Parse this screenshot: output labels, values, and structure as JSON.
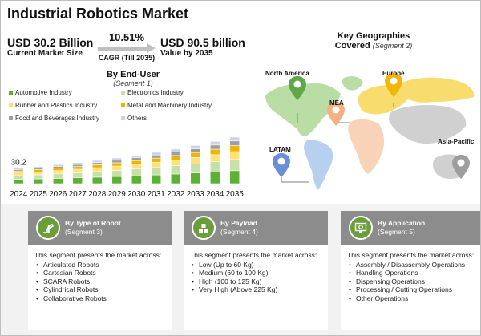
{
  "title": "Industrial Robotics Market",
  "market": {
    "current_value": "USD 30.2 Billion",
    "current_label": "Current Market Size",
    "cagr_value": "10.51%",
    "cagr_label": "CAGR (Till 2035)",
    "future_value": "USD 90.5 billion",
    "future_label": "Value by 2035"
  },
  "end_user": {
    "title": "By End-User",
    "subtitle": "(Segment 1)"
  },
  "geographies": {
    "title_line1": "Key Geographies",
    "title_line2": "Covered",
    "subtitle": "(Segment 2)",
    "regions": [
      "North America",
      "Europe",
      "MEA",
      "LATAM",
      "Asia-Pacific"
    ],
    "pin_colors": {
      "North America": "#5fa84a",
      "Europe": "#f2b705",
      "MEA": "#f4b183",
      "LATAM": "#6b8fd6",
      "Asia-Pacific": "#9e9e9e"
    }
  },
  "chart_data": {
    "type": "bar",
    "stacked": true,
    "categories": [
      "2024",
      "2025",
      "2026",
      "2027",
      "2028",
      "2029",
      "2030",
      "2031",
      "2032",
      "2033",
      "2034",
      "2035"
    ],
    "series": [
      {
        "name": "Automotive Industry",
        "color": "#5cb032",
        "values": [
          8.4,
          9.3,
          10.3,
          11.4,
          12.6,
          13.9,
          15.4,
          17.0,
          18.8,
          20.8,
          23.0,
          25.3
        ]
      },
      {
        "name": "Electronics Industry",
        "color": "#c7e0a8",
        "values": [
          7.2,
          8.0,
          8.8,
          9.7,
          10.8,
          11.9,
          13.1,
          14.5,
          16.0,
          17.7,
          19.6,
          21.7
        ]
      },
      {
        "name": "Rubber and Plastics Industry",
        "color": "#fde27a",
        "values": [
          5.1,
          5.6,
          6.2,
          6.9,
          7.6,
          8.4,
          9.3,
          10.3,
          11.3,
          12.5,
          13.8,
          15.3
        ]
      },
      {
        "name": "Metal and Machinery Industry",
        "color": "#f0b400",
        "values": [
          3.9,
          4.3,
          4.8,
          5.3,
          5.8,
          6.4,
          7.1,
          7.9,
          8.7,
          9.6,
          10.6,
          11.7
        ]
      },
      {
        "name": "Food and Beverages Industry",
        "color": "#9e9e9e",
        "values": [
          3.0,
          3.3,
          3.7,
          4.1,
          4.5,
          5.0,
          5.5,
          6.1,
          6.7,
          7.4,
          8.2,
          9.1
        ]
      },
      {
        "name": "Others",
        "color": "#c9d3ee",
        "values": [
          2.6,
          2.9,
          3.2,
          3.5,
          3.9,
          4.3,
          4.7,
          5.2,
          5.8,
          6.4,
          7.0,
          7.4
        ]
      }
    ],
    "data_labels": [
      {
        "category": "2024",
        "text": "30.2"
      }
    ],
    "legend_position": "top",
    "ylim": [
      0,
      100
    ],
    "grid": false
  },
  "cards": [
    {
      "title": "By Type of Robot",
      "subtitle": "(Segment 3)",
      "icon": "robot-arm-icon",
      "intro": "This segment presents the market across:",
      "items": [
        "Articulated Robots",
        "Cartesian Robots",
        "SCARA Robots",
        "Cylindrical Robots",
        "Collaborative Robots"
      ]
    },
    {
      "title": "By Payload",
      "subtitle": "(Segment 4)",
      "icon": "boxes-icon",
      "intro": "This segment presents the market across:",
      "items": [
        "Low (Up to 60 Kg)",
        "Medium (60 to 100 Kg)",
        "High (100 to 125 Kg)",
        "Very High (Above 225 Kg)"
      ]
    },
    {
      "title": "By Application",
      "subtitle": "(Segment 5)",
      "icon": "monitor-gear-icon",
      "intro": "This segment presents the market across:",
      "items": [
        "Assembly / Disassembly Operations",
        "Handling Operations",
        "Dispensing Operations",
        "Processing / Cutting Operations",
        "Other Operations"
      ]
    }
  ]
}
